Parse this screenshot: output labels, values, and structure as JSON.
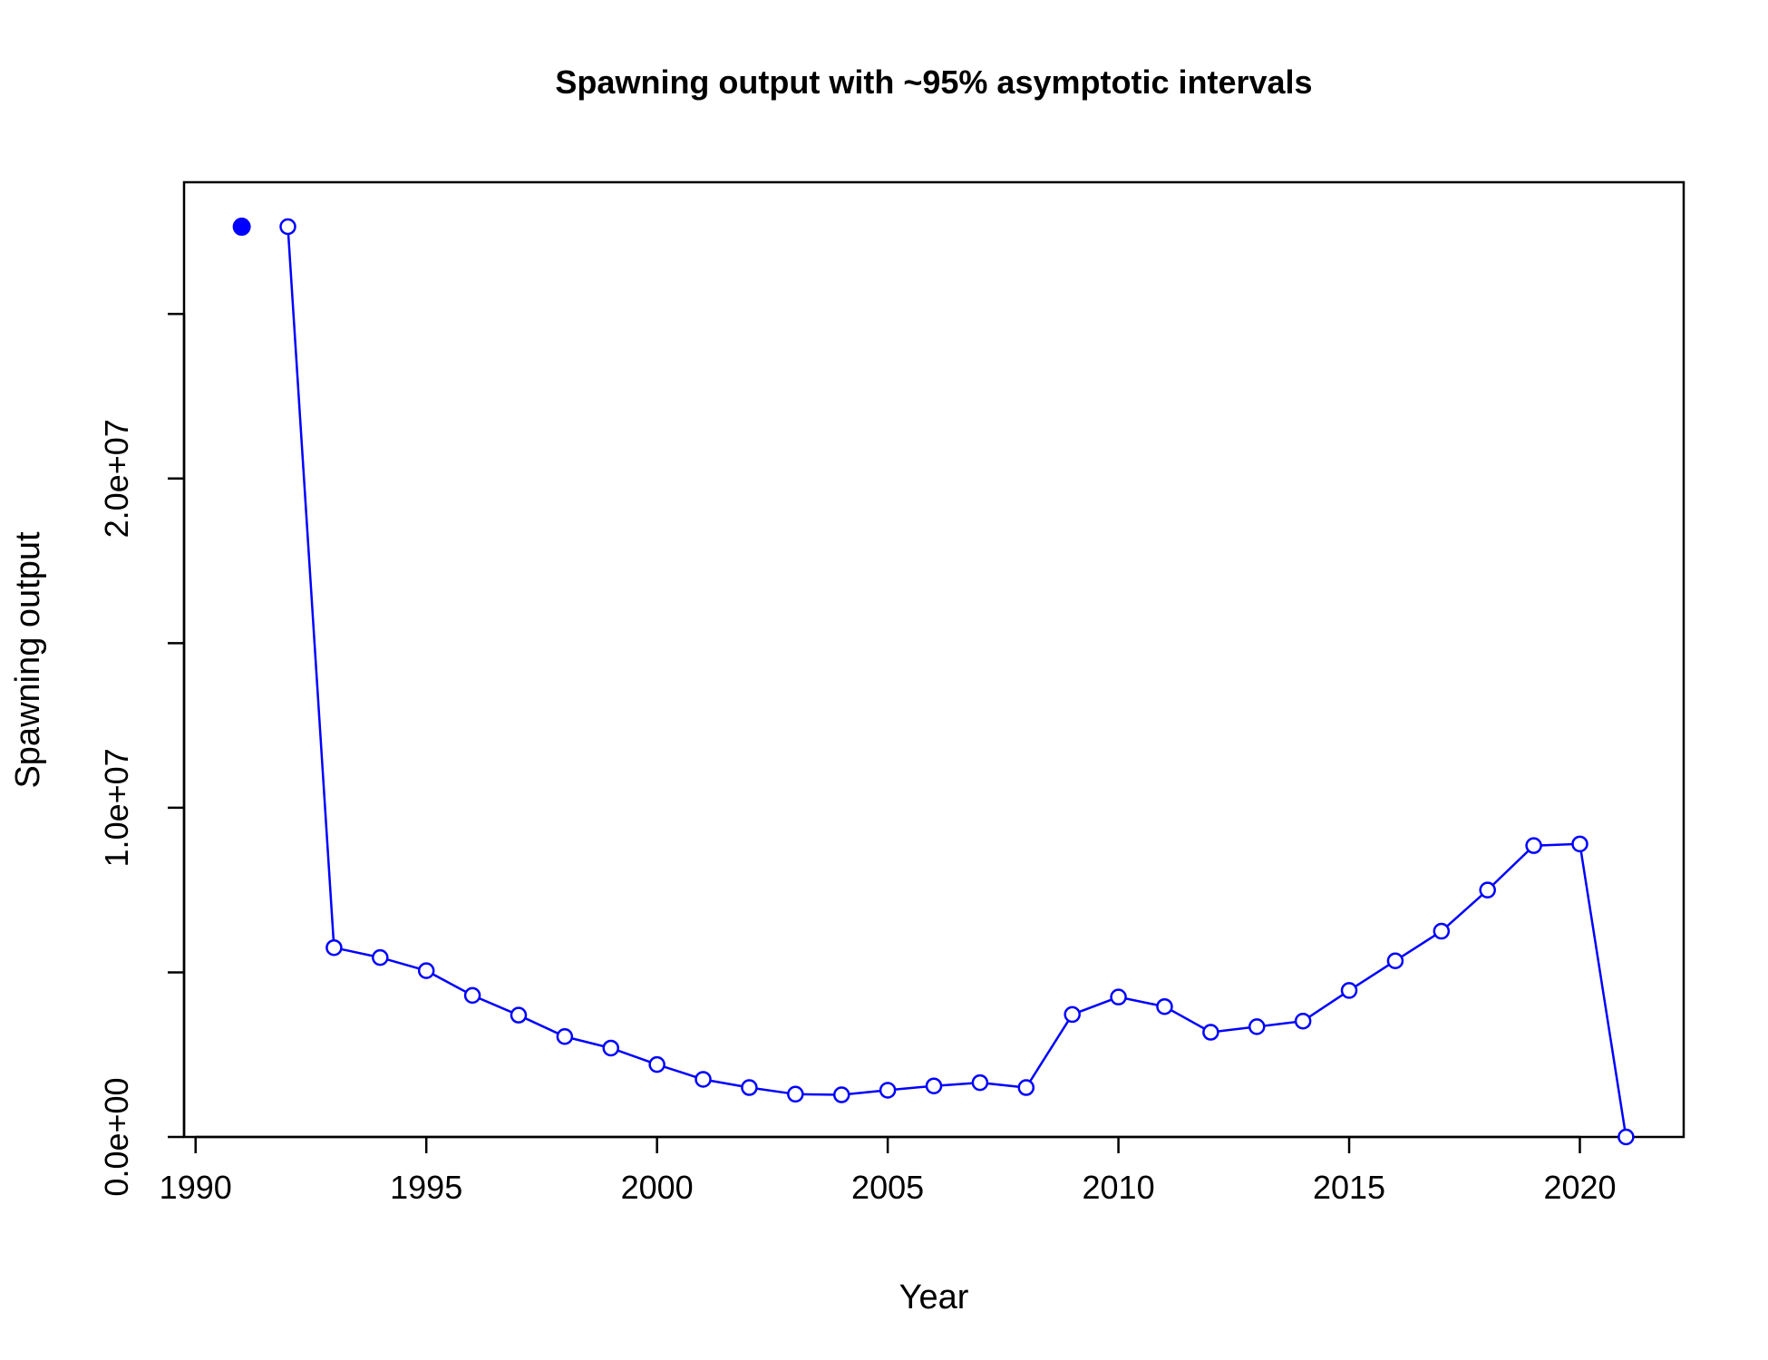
{
  "chart_data": {
    "type": "line",
    "title": "Spawning output with ~95% asymptotic intervals",
    "xlabel": "Year",
    "ylabel": "Spawning output",
    "xlim": [
      1989.75,
      2022.25
    ],
    "ylim": [
      0,
      29000000
    ],
    "x_ticks": [
      1990,
      1995,
      2000,
      2005,
      2010,
      2015,
      2020
    ],
    "x_tick_labels": [
      "1990",
      "1995",
      "2000",
      "2005",
      "2010",
      "2015",
      "2020"
    ],
    "y_ticks": [
      0,
      5000000,
      10000000,
      15000000,
      20000000,
      25000000
    ],
    "y_tick_labels": [
      "0.0e+00",
      "",
      "1.0e+07",
      "",
      "2.0e+07",
      ""
    ],
    "grid": false,
    "legend": "none",
    "color": "#0000ff",
    "initial_point": {
      "x": 1991,
      "y": 27650000
    },
    "series": [
      {
        "x": [
          1992,
          1993,
          1994,
          1995,
          1996,
          1997,
          1998,
          1999,
          2000,
          2001,
          2002,
          2003,
          2004,
          2005,
          2006,
          2007,
          2008,
          2009,
          2010,
          2011,
          2012,
          2013,
          2014,
          2015,
          2016,
          2017,
          2018,
          2019,
          2020,
          2021
        ],
        "values": [
          27650000,
          5750000,
          5450000,
          5050000,
          4300000,
          3700000,
          3050000,
          2700000,
          2200000,
          1750000,
          1500000,
          1300000,
          1280000,
          1420000,
          1550000,
          1650000,
          1500000,
          3720000,
          4250000,
          3960000,
          3180000,
          3350000,
          3520000,
          4450000,
          5350000,
          6250000,
          7500000,
          8850000,
          8900000,
          0
        ]
      }
    ]
  }
}
